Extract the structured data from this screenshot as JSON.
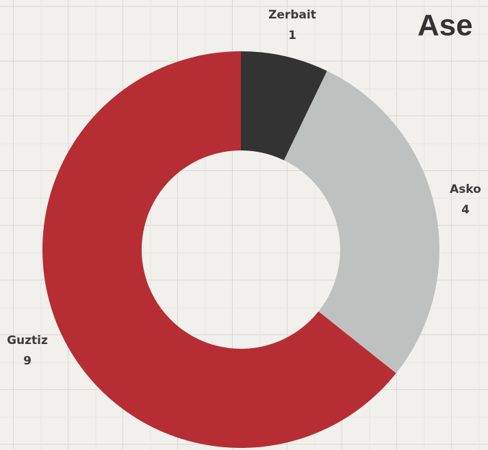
{
  "chart_data": {
    "type": "donut",
    "title": "Ase",
    "categories": [
      "Zerbait",
      "Asko",
      "Guztiz"
    ],
    "values": [
      1,
      4,
      9
    ],
    "colors": [
      "#333333",
      "#bfc1c1",
      "#b72d34"
    ]
  }
}
